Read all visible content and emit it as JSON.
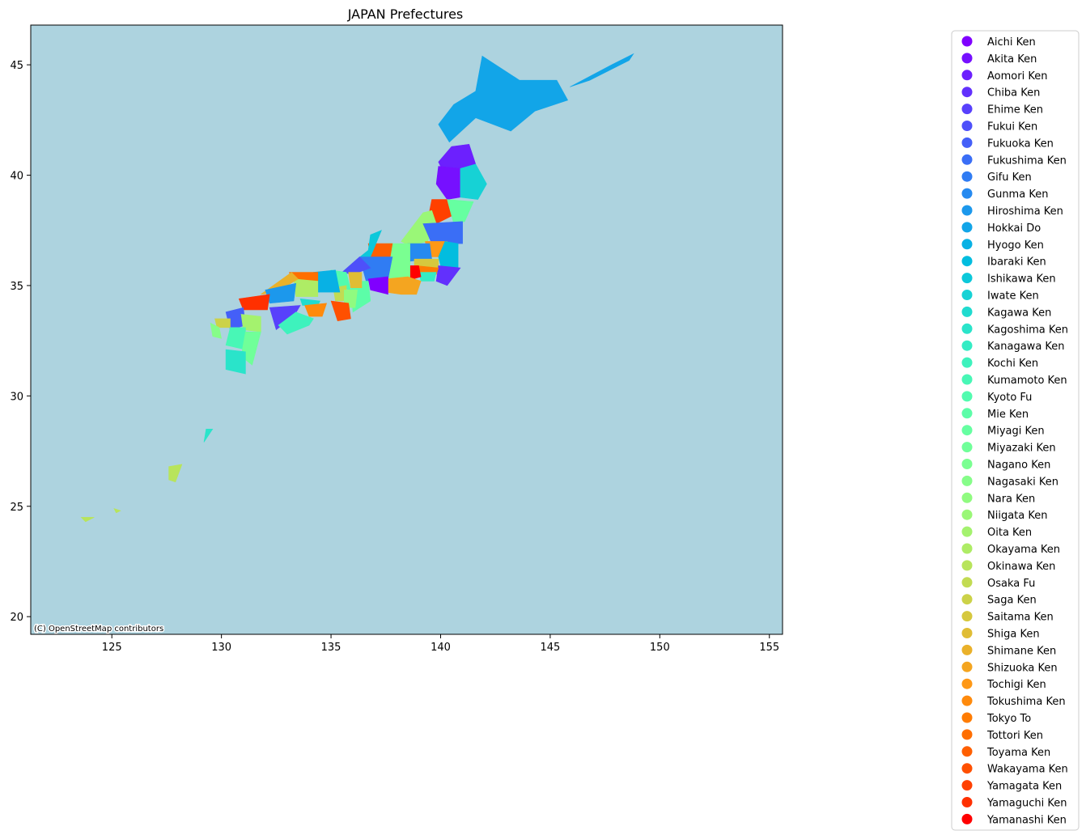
{
  "map": {
    "title": "JAPAN Prefectures",
    "attribution": "(C) OpenStreetMap contributors",
    "background_color": "#add3df",
    "xlim": [
      121.3,
      155.6
    ],
    "ylim": [
      19.2,
      46.8
    ],
    "x_ticks": [
      125,
      130,
      135,
      140,
      145,
      150,
      155
    ],
    "y_ticks": [
      20,
      25,
      30,
      35,
      40,
      45
    ],
    "colormap": "rainbow"
  },
  "legend": {
    "placement": "right, outside",
    "items": [
      {
        "label": "Aichi Ken",
        "color": "#8000ff"
      },
      {
        "label": "Akita Ken",
        "color": "#7610ff"
      },
      {
        "label": "Aomori Ken",
        "color": "#6c20fe"
      },
      {
        "label": "Chiba Ken",
        "color": "#6230fd"
      },
      {
        "label": "Ehime Ken",
        "color": "#5840fc"
      },
      {
        "label": "Fukui Ken",
        "color": "#4e50fa"
      },
      {
        "label": "Fukuoka Ken",
        "color": "#445ff8"
      },
      {
        "label": "Fukushima Ken",
        "color": "#3a6ef6"
      },
      {
        "label": "Gifu Ken",
        "color": "#307cf3"
      },
      {
        "label": "Gunma Ken",
        "color": "#268af0"
      },
      {
        "label": "Hiroshima Ken",
        "color": "#1c98ec"
      },
      {
        "label": "Hokkai Do",
        "color": "#12a5e8"
      },
      {
        "label": "Hyogo Ken",
        "color": "#08b1e4"
      },
      {
        "label": "Ibaraki Ken",
        "color": "#02bddf"
      },
      {
        "label": "Ishikawa Ken",
        "color": "#0cc8da"
      },
      {
        "label": "Iwate Ken",
        "color": "#16d2d5"
      },
      {
        "label": "Kagawa Ken",
        "color": "#20dbcf"
      },
      {
        "label": "Kagoshima Ken",
        "color": "#2ae4ca"
      },
      {
        "label": "Kanagawa Ken",
        "color": "#34ecc4"
      },
      {
        "label": "Kochi Ken",
        "color": "#3ef2bd"
      },
      {
        "label": "Kumamoto Ken",
        "color": "#48f7b6"
      },
      {
        "label": "Kyoto Fu",
        "color": "#52fbaf"
      },
      {
        "label": "Mie Ken",
        "color": "#5cfda8"
      },
      {
        "label": "Miyagi Ken",
        "color": "#66ffa1"
      },
      {
        "label": "Miyazaki Ken",
        "color": "#70ff99"
      },
      {
        "label": "Nagano Ken",
        "color": "#7aff91"
      },
      {
        "label": "Nagasaki Ken",
        "color": "#86fd89"
      },
      {
        "label": "Nara Ken",
        "color": "#90fb80"
      },
      {
        "label": "Niigata Ken",
        "color": "#9af777"
      },
      {
        "label": "Oita Ken",
        "color": "#a4f26e"
      },
      {
        "label": "Okayama Ken",
        "color": "#aeec65"
      },
      {
        "label": "Okinawa Ken",
        "color": "#b8e45b"
      },
      {
        "label": "Osaka Fu",
        "color": "#c2db52"
      },
      {
        "label": "Saga Ken",
        "color": "#ccd248"
      },
      {
        "label": "Saitama Ken",
        "color": "#d6c83e"
      },
      {
        "label": "Shiga Ken",
        "color": "#e0bd34"
      },
      {
        "label": "Shimane Ken",
        "color": "#eab12a"
      },
      {
        "label": "Shizuoka Ken",
        "color": "#f4a520"
      },
      {
        "label": "Tochigi Ken",
        "color": "#fe9816"
      },
      {
        "label": "Tokushima Ken",
        "color": "#ff8a0c"
      },
      {
        "label": "Tokyo To",
        "color": "#ff7c02"
      },
      {
        "label": "Tottori Ken",
        "color": "#ff6e00"
      },
      {
        "label": "Toyama Ken",
        "color": "#ff5f00"
      },
      {
        "label": "Wakayama Ken",
        "color": "#ff5000"
      },
      {
        "label": "Yamagata Ken",
        "color": "#ff4000"
      },
      {
        "label": "Yamaguchi Ken",
        "color": "#ff3000"
      },
      {
        "label": "Yamanashi Ken",
        "color": "#ff0000"
      }
    ]
  }
}
